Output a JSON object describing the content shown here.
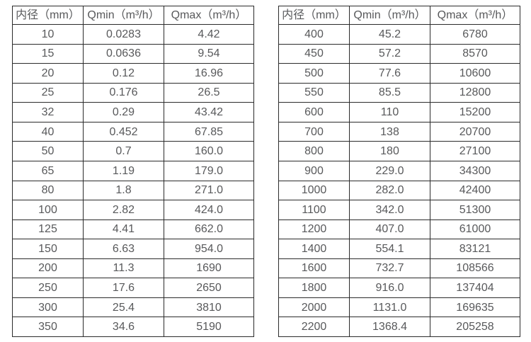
{
  "colors": {
    "border": "#2b2b2b",
    "text": "#58595b",
    "background": "#ffffff"
  },
  "tables": [
    {
      "name": "small-diameters",
      "headers": [
        "内径（mm）",
        "Qmin（m³/h）",
        "Qmax（m³/h）"
      ],
      "rows": [
        [
          "10",
          "0.0283",
          "4.42"
        ],
        [
          "15",
          "0.0636",
          "9.54"
        ],
        [
          "20",
          "0.12",
          "16.96"
        ],
        [
          "25",
          "0.176",
          "26.5"
        ],
        [
          "32",
          "0.29",
          "43.42"
        ],
        [
          "40",
          "0.452",
          "67.85"
        ],
        [
          "50",
          "0.7",
          "160.0"
        ],
        [
          "65",
          "1.19",
          "179.0"
        ],
        [
          "80",
          "1.8",
          "271.0"
        ],
        [
          "100",
          "2.82",
          "424.0"
        ],
        [
          "125",
          "4.41",
          "662.0"
        ],
        [
          "150",
          "6.63",
          "954.0"
        ],
        [
          "200",
          "11.3",
          "1690"
        ],
        [
          "250",
          "17.6",
          "2650"
        ],
        [
          "300",
          "25.4",
          "3810"
        ],
        [
          "350",
          "34.6",
          "5190"
        ]
      ]
    },
    {
      "name": "large-diameters",
      "headers": [
        "内径（mm）",
        "Qmin（m³/h）",
        "Qmax（m³/h）"
      ],
      "rows": [
        [
          "400",
          "45.2",
          "6780"
        ],
        [
          "450",
          "57.2",
          "8570"
        ],
        [
          "500",
          "77.6",
          "10600"
        ],
        [
          "550",
          "85.5",
          "12800"
        ],
        [
          "600",
          "110",
          "15200"
        ],
        [
          "700",
          "138",
          "20700"
        ],
        [
          "800",
          "180",
          "27100"
        ],
        [
          "900",
          "229.0",
          "34300"
        ],
        [
          "1000",
          "282.0",
          "42400"
        ],
        [
          "1100",
          "342.0",
          "51300"
        ],
        [
          "1200",
          "407.0",
          "61000"
        ],
        [
          "1400",
          "554.1",
          "83121"
        ],
        [
          "1600",
          "732.7",
          "108566"
        ],
        [
          "1800",
          "916.0",
          "137404"
        ],
        [
          "2000",
          "1131.0",
          "169635"
        ],
        [
          "2200",
          "1368.4",
          "205258"
        ]
      ]
    }
  ]
}
